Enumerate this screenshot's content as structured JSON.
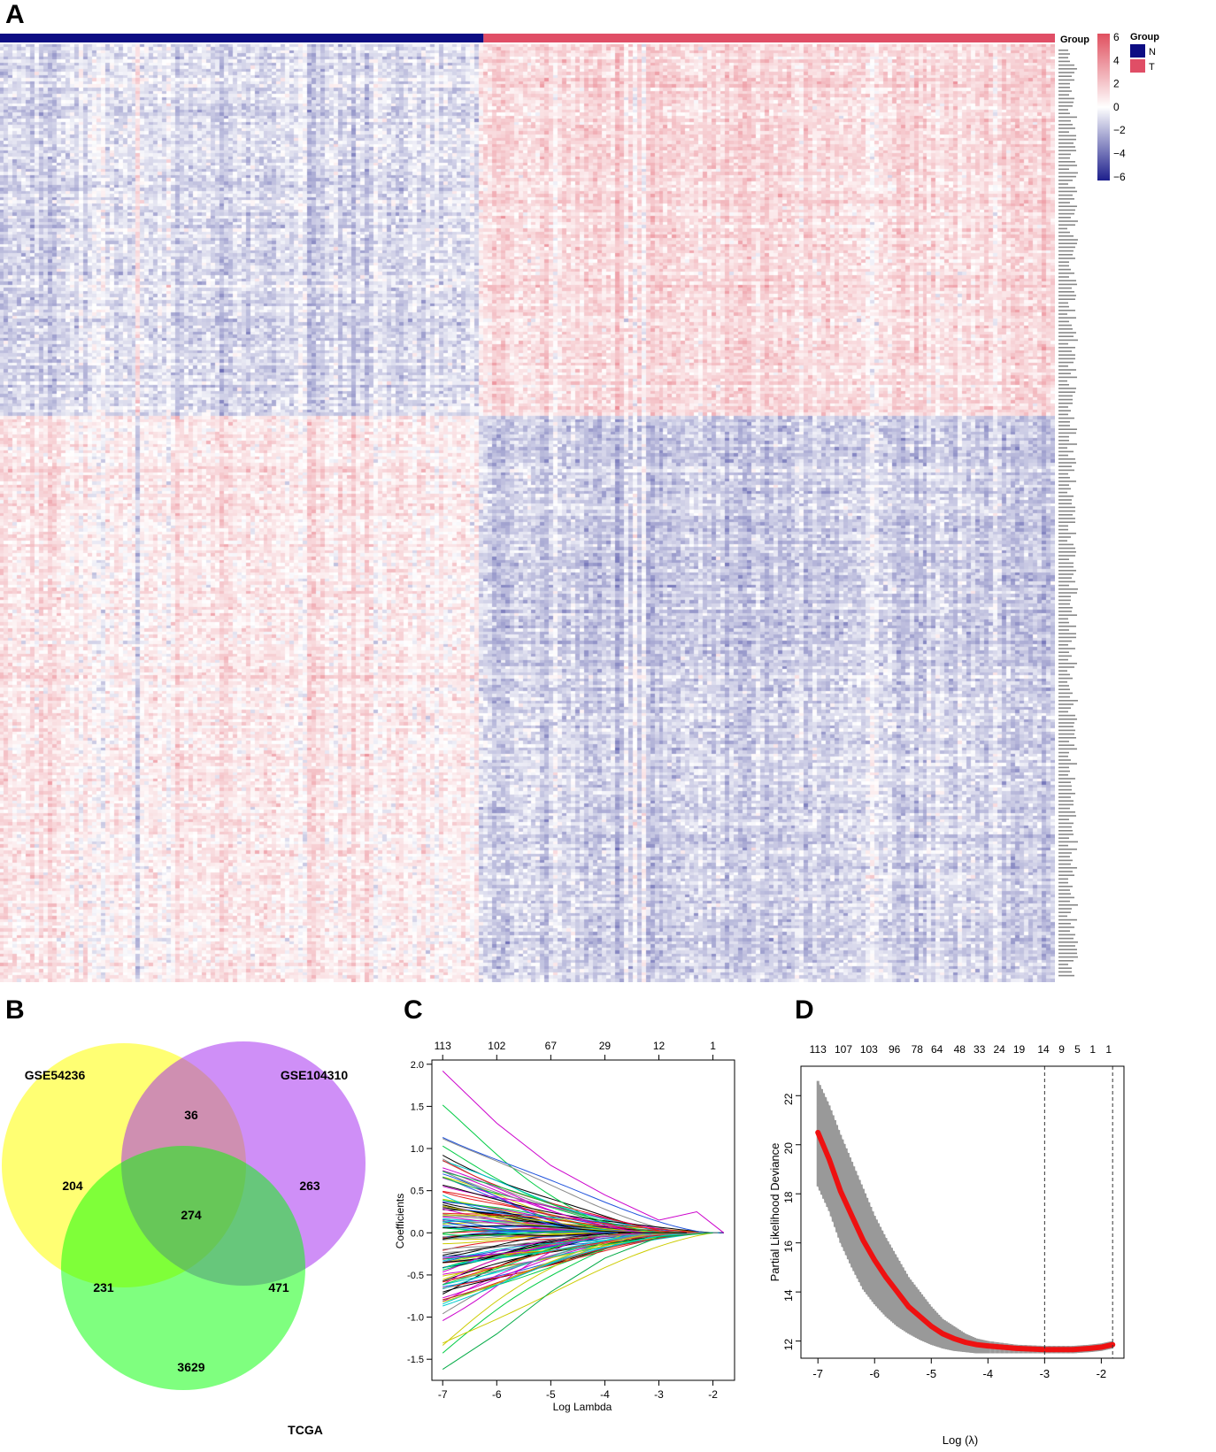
{
  "panels": {
    "a": "A",
    "b": "B",
    "c": "C",
    "d": "D"
  },
  "colors": {
    "group_n": "#0d0d83",
    "group_t": "#e04e66",
    "high": "#e0505f",
    "mid": "#ffffff",
    "low": "#1d1f8c"
  },
  "chart_data": [
    {
      "type": "heatmap",
      "panel": "A",
      "annotation_label": "Group",
      "groups": [
        {
          "name": "N",
          "color": "#0d0d83"
        },
        {
          "name": "T",
          "color": "#e04e66"
        }
      ],
      "legend_title": "Group",
      "colorbar_ticks": [
        "6",
        "4",
        "2",
        "0",
        "−2",
        "−4",
        "−6"
      ],
      "colorbar_range": [
        -6,
        6
      ],
      "row_blocks": [
        {
          "description": "up-regulated in T",
          "n_mean": -1.0,
          "t_mean": 1.2
        },
        {
          "description": "down-regulated in T",
          "n_mean": 0.8,
          "t_mean": -1.3
        },
        {
          "description": "down-regulated in T",
          "n_mean": 0.7,
          "t_mean": -1.1
        }
      ]
    },
    {
      "type": "venn",
      "panel": "B",
      "sets": [
        "GSE54236",
        "GSE104310",
        "TCGA"
      ],
      "regions": {
        "gse54236_only": "204",
        "gse104310_only": "263",
        "tcga_only": "3629",
        "gse54236_gse104310": "36",
        "gse54236_tcga": "231",
        "gse104310_tcga": "471",
        "all_three": "274"
      }
    },
    {
      "type": "line",
      "panel": "C",
      "xlabel": "Log Lambda",
      "ylabel": "Coefficients",
      "xlim": [
        -7.2,
        -1.6
      ],
      "ylim": [
        -1.75,
        2.05
      ],
      "x_ticks": [
        "-7",
        "-6",
        "-5",
        "-4",
        "-3",
        "-2"
      ],
      "y_ticks": [
        "-1.5",
        "-1.0",
        "-0.5",
        "0.0",
        "0.5",
        "1.0",
        "1.5",
        "2.0"
      ],
      "top_ticks": [
        "113",
        "102",
        "67",
        "29",
        "12",
        "1"
      ],
      "top_tick_x": [
        -7,
        -6,
        -5,
        -4,
        -3,
        -2
      ],
      "n_paths": 113,
      "series_sample": [
        {
          "name": "top path",
          "points": [
            [
              -7,
              1.92
            ],
            [
              -6,
              1.3
            ],
            [
              -5,
              0.8
            ],
            [
              -4,
              0.45
            ],
            [
              -3,
              0.15
            ],
            [
              -2.3,
              0.25
            ],
            [
              -1.8,
              0.0
            ]
          ]
        },
        {
          "name": "bottom path",
          "points": [
            [
              -7,
              -1.62
            ],
            [
              -6,
              -1.2
            ],
            [
              -5,
              -0.7
            ],
            [
              -4,
              -0.3
            ],
            [
              -3,
              -0.05
            ],
            [
              -2,
              0.0
            ]
          ]
        }
      ]
    },
    {
      "type": "line",
      "panel": "D",
      "xlabel": "Log (λ)",
      "ylabel": "Partial Likelihood Deviance",
      "xlim": [
        -7.3,
        -1.6
      ],
      "ylim": [
        11.3,
        23.2
      ],
      "x_ticks": [
        "-7",
        "-6",
        "-5",
        "-4",
        "-3",
        "-2"
      ],
      "y_ticks": [
        "12",
        "14",
        "16",
        "18",
        "20",
        "22"
      ],
      "top_ticks": [
        "113",
        "107",
        "103",
        "96",
        "78",
        "64",
        "48",
        "33",
        "24",
        "19",
        "14",
        "9",
        "5",
        "1",
        "1"
      ],
      "top_tick_x": [
        -7.0,
        -6.55,
        -6.1,
        -5.65,
        -5.25,
        -4.9,
        -4.5,
        -4.15,
        -3.8,
        -3.45,
        -3.02,
        -2.7,
        -2.42,
        -2.15,
        -1.87
      ],
      "vlines": [
        -3.0,
        -1.8
      ],
      "curve": [
        [
          -7,
          20.5
        ],
        [
          -6.8,
          19.4
        ],
        [
          -6.6,
          18.1
        ],
        [
          -6.4,
          17.1
        ],
        [
          -6.2,
          16.1
        ],
        [
          -6.0,
          15.3
        ],
        [
          -5.8,
          14.6
        ],
        [
          -5.6,
          14.0
        ],
        [
          -5.4,
          13.4
        ],
        [
          -5.2,
          13.0
        ],
        [
          -5.0,
          12.6
        ],
        [
          -4.8,
          12.3
        ],
        [
          -4.6,
          12.1
        ],
        [
          -4.4,
          11.95
        ],
        [
          -4.2,
          11.85
        ],
        [
          -4.0,
          11.8
        ],
        [
          -3.5,
          11.7
        ],
        [
          -3.0,
          11.65
        ],
        [
          -2.5,
          11.65
        ],
        [
          -2.2,
          11.7
        ],
        [
          -2.0,
          11.75
        ],
        [
          -1.8,
          11.85
        ]
      ],
      "band": [
        [
          -7,
          22.6,
          18.3
        ],
        [
          -6.8,
          21.6,
          17.3
        ],
        [
          -6.6,
          20.4,
          16.0
        ],
        [
          -6.4,
          19.3,
          15.0
        ],
        [
          -6.2,
          18.2,
          14.1
        ],
        [
          -6.0,
          17.1,
          13.5
        ],
        [
          -5.8,
          16.2,
          13.0
        ],
        [
          -5.6,
          15.4,
          12.6
        ],
        [
          -5.4,
          14.6,
          12.3
        ],
        [
          -5.2,
          14.0,
          12.05
        ],
        [
          -5.0,
          13.4,
          11.85
        ],
        [
          -4.8,
          12.9,
          11.7
        ],
        [
          -4.6,
          12.6,
          11.6
        ],
        [
          -4.4,
          12.3,
          11.55
        ],
        [
          -4.2,
          12.1,
          11.5
        ],
        [
          -4.0,
          12.0,
          11.5
        ],
        [
          -3.5,
          11.85,
          11.5
        ],
        [
          -3.0,
          11.8,
          11.5
        ],
        [
          -2.5,
          11.8,
          11.5
        ],
        [
          -2.2,
          11.85,
          11.55
        ],
        [
          -2.0,
          11.9,
          11.6
        ],
        [
          -1.8,
          12.0,
          11.7
        ]
      ]
    }
  ]
}
